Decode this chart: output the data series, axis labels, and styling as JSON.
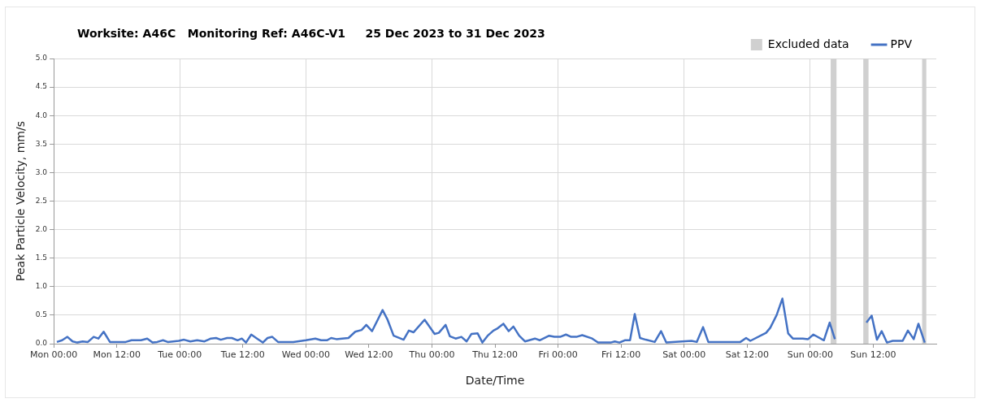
{
  "chart_data": {
    "type": "line",
    "title": "Worksite: A46C   Monitoring Ref: A46C-V1     25 Dec 2023 to 31 Dec 2023",
    "xlabel": "Date/Time",
    "ylabel": "Peak Particle Velocity, mm/s",
    "xlim": [
      "2023-12-25T00:00",
      "2024-01-01T00:00"
    ],
    "xticks": [
      {
        "value": "2023-12-25T00:00",
        "label": "Mon 00:00"
      },
      {
        "value": "2023-12-25T12:00",
        "label": "Mon 12:00"
      },
      {
        "value": "2023-12-26T00:00",
        "label": "Tue 00:00"
      },
      {
        "value": "2023-12-26T12:00",
        "label": "Tue 12:00"
      },
      {
        "value": "2023-12-27T00:00",
        "label": "Wed 00:00"
      },
      {
        "value": "2023-12-27T12:00",
        "label": "Wed 12:00"
      },
      {
        "value": "2023-12-28T00:00",
        "label": "Thu 00:00"
      },
      {
        "value": "2023-12-28T12:00",
        "label": "Thu 12:00"
      },
      {
        "value": "2023-12-29T00:00",
        "label": "Fri 00:00"
      },
      {
        "value": "2023-12-29T12:00",
        "label": "Fri 12:00"
      },
      {
        "value": "2023-12-30T00:00",
        "label": "Sat 00:00"
      },
      {
        "value": "2023-12-30T12:00",
        "label": "Sat 12:00"
      },
      {
        "value": "2023-12-31T00:00",
        "label": "Sun 00:00"
      },
      {
        "value": "2023-12-31T12:00",
        "label": "Sun 12:00"
      }
    ],
    "ylim": [
      0,
      5
    ],
    "yticks": [
      {
        "value": 0,
        "label": "0.0"
      },
      {
        "value": 0.5,
        "label": "0.5"
      },
      {
        "value": 1,
        "label": "1.0"
      },
      {
        "value": 1.5,
        "label": "1.5"
      },
      {
        "value": 2,
        "label": "2.0"
      },
      {
        "value": 2.5,
        "label": "2.5"
      },
      {
        "value": 3,
        "label": "3.0"
      },
      {
        "value": 3.5,
        "label": "3.5"
      },
      {
        "value": 4,
        "label": "4.0"
      },
      {
        "value": 4.5,
        "label": "4.5"
      },
      {
        "value": 5,
        "label": "5.0"
      }
    ],
    "grid": true,
    "legend": "top right",
    "marker": "none",
    "line_style": "solid",
    "bands": [
      {
        "axis": "x",
        "from": "2023-12-31T03:54",
        "to": "2023-12-31T05:00",
        "label": "Excluded data",
        "color": "#d0d0d0"
      },
      {
        "axis": "x",
        "from": "2023-12-31T10:06",
        "to": "2023-12-31T11:06",
        "color": "#d0d0d0"
      },
      {
        "axis": "x",
        "from": "2023-12-31T21:18",
        "to": "2023-12-31T22:06",
        "color": "#d0d0d0"
      }
    ],
    "series": [
      {
        "name": "PPV",
        "color": "#4472c4",
        "x": [
          "2023-12-25T00:36",
          "2023-12-25T01:36",
          "2023-12-25T02:36",
          "2023-12-25T03:36",
          "2023-12-25T04:30",
          "2023-12-25T05:30",
          "2023-12-25T06:30",
          "2023-12-25T07:36",
          "2023-12-25T08:30",
          "2023-12-25T09:30",
          "2023-12-25T10:42",
          "2023-12-25T13:42",
          "2023-12-25T14:48",
          "2023-12-25T16:36",
          "2023-12-25T17:48",
          "2023-12-25T18:48",
          "2023-12-25T19:42",
          "2023-12-25T20:48",
          "2023-12-25T21:42",
          "2023-12-25T23:48",
          "2023-12-26T00:48",
          "2023-12-26T02:00",
          "2023-12-26T03:18",
          "2023-12-26T04:42",
          "2023-12-26T05:54",
          "2023-12-26T06:54",
          "2023-12-26T07:48",
          "2023-12-26T09:00",
          "2023-12-26T09:54",
          "2023-12-26T11:00",
          "2023-12-26T11:48",
          "2023-12-26T12:36",
          "2023-12-26T13:36",
          "2023-12-26T14:42",
          "2023-12-26T15:48",
          "2023-12-26T16:42",
          "2023-12-26T17:36",
          "2023-12-26T18:42",
          "2023-12-26T21:36",
          "2023-12-27T00:00",
          "2023-12-27T01:48",
          "2023-12-27T02:54",
          "2023-12-27T04:00",
          "2023-12-27T04:48",
          "2023-12-27T05:48",
          "2023-12-27T06:54",
          "2023-12-27T08:06",
          "2023-12-27T09:24",
          "2023-12-27T10:36",
          "2023-12-27T11:30",
          "2023-12-27T12:36",
          "2023-12-27T14:36",
          "2023-12-27T15:30",
          "2023-12-27T16:42",
          "2023-12-27T18:36",
          "2023-12-27T19:36",
          "2023-12-27T20:30",
          "2023-12-27T22:36",
          "2023-12-28T00:30",
          "2023-12-28T01:18",
          "2023-12-28T02:36",
          "2023-12-28T03:24",
          "2023-12-28T04:30",
          "2023-12-28T05:36",
          "2023-12-28T06:36",
          "2023-12-28T07:30",
          "2023-12-28T08:42",
          "2023-12-28T09:36",
          "2023-12-28T10:36",
          "2023-12-28T11:42",
          "2023-12-28T12:30",
          "2023-12-28T13:36",
          "2023-12-28T14:36",
          "2023-12-28T15:30",
          "2023-12-28T16:36",
          "2023-12-28T17:42",
          "2023-12-28T19:36",
          "2023-12-28T20:30",
          "2023-12-28T22:18",
          "2023-12-28T23:18",
          "2023-12-29T00:24",
          "2023-12-29T01:30",
          "2023-12-29T02:30",
          "2023-12-29T03:30",
          "2023-12-29T04:36",
          "2023-12-29T06:30",
          "2023-12-29T07:36",
          "2023-12-29T10:00",
          "2023-12-29T10:48",
          "2023-12-29T11:42",
          "2023-12-29T12:42",
          "2023-12-29T13:42",
          "2023-12-29T14:36",
          "2023-12-29T15:36",
          "2023-12-29T16:42",
          "2023-12-29T18:24",
          "2023-12-29T19:36",
          "2023-12-29T20:36",
          "2023-12-30T01:24",
          "2023-12-30T02:24",
          "2023-12-30T03:36",
          "2023-12-30T04:36",
          "2023-12-30T10:42",
          "2023-12-30T11:48",
          "2023-12-30T12:36",
          "2023-12-30T15:36",
          "2023-12-30T16:24",
          "2023-12-30T17:36",
          "2023-12-30T18:42",
          "2023-12-30T19:48",
          "2023-12-30T20:42",
          "2023-12-30T22:36",
          "2023-12-30T23:36",
          "2023-12-31T00:36",
          "2023-12-31T02:36",
          "2023-12-31T03:42",
          "2023-12-31T04:42",
          "2023-12-31T07:30",
          "2023-12-31T10:42",
          "2023-12-31T11:42",
          "2023-12-31T12:42",
          "2023-12-31T13:36",
          "2023-12-31T14:36",
          "2023-12-31T15:42",
          "2023-12-31T17:36",
          "2023-12-31T18:36",
          "2023-12-31T19:42",
          "2023-12-31T20:36",
          "2023-12-31T21:48"
        ],
        "values": [
          0.03,
          0.06,
          0.12,
          0.04,
          0.02,
          0.04,
          0.03,
          0.12,
          0.09,
          0.21,
          0.03,
          0.03,
          0.06,
          0.06,
          0.09,
          0.02,
          0.03,
          0.06,
          0.03,
          0.05,
          0.07,
          0.04,
          0.06,
          0.04,
          0.09,
          0.1,
          0.07,
          0.1,
          0.1,
          0.06,
          0.09,
          0.02,
          0.16,
          0.09,
          0.02,
          0.1,
          0.12,
          0.03,
          0.03,
          0.06,
          0.09,
          0.06,
          0.06,
          0.1,
          0.08,
          0.09,
          0.1,
          0.21,
          0.24,
          0.33,
          0.22,
          0.59,
          0.43,
          0.14,
          0.07,
          0.23,
          0.2,
          0.42,
          0.17,
          0.19,
          0.33,
          0.13,
          0.09,
          0.12,
          0.04,
          0.17,
          0.18,
          0.02,
          0.14,
          0.23,
          0.27,
          0.35,
          0.22,
          0.3,
          0.14,
          0.04,
          0.09,
          0.06,
          0.14,
          0.12,
          0.12,
          0.16,
          0.12,
          0.12,
          0.15,
          0.09,
          0.02,
          0.02,
          0.04,
          0.02,
          0.06,
          0.06,
          0.52,
          0.1,
          0.07,
          0.03,
          0.22,
          0.02,
          0.05,
          0.03,
          0.29,
          0.03,
          0.03,
          0.1,
          0.05,
          0.19,
          0.28,
          0.5,
          0.79,
          0.18,
          0.09,
          0.09,
          0.08,
          0.16,
          0.06,
          0.37,
          0.08,
          null,
          0.37,
          0.49,
          0.07,
          0.22,
          0.02,
          0.05,
          0.05,
          0.23,
          0.08,
          0.35,
          0.02
        ]
      }
    ]
  }
}
